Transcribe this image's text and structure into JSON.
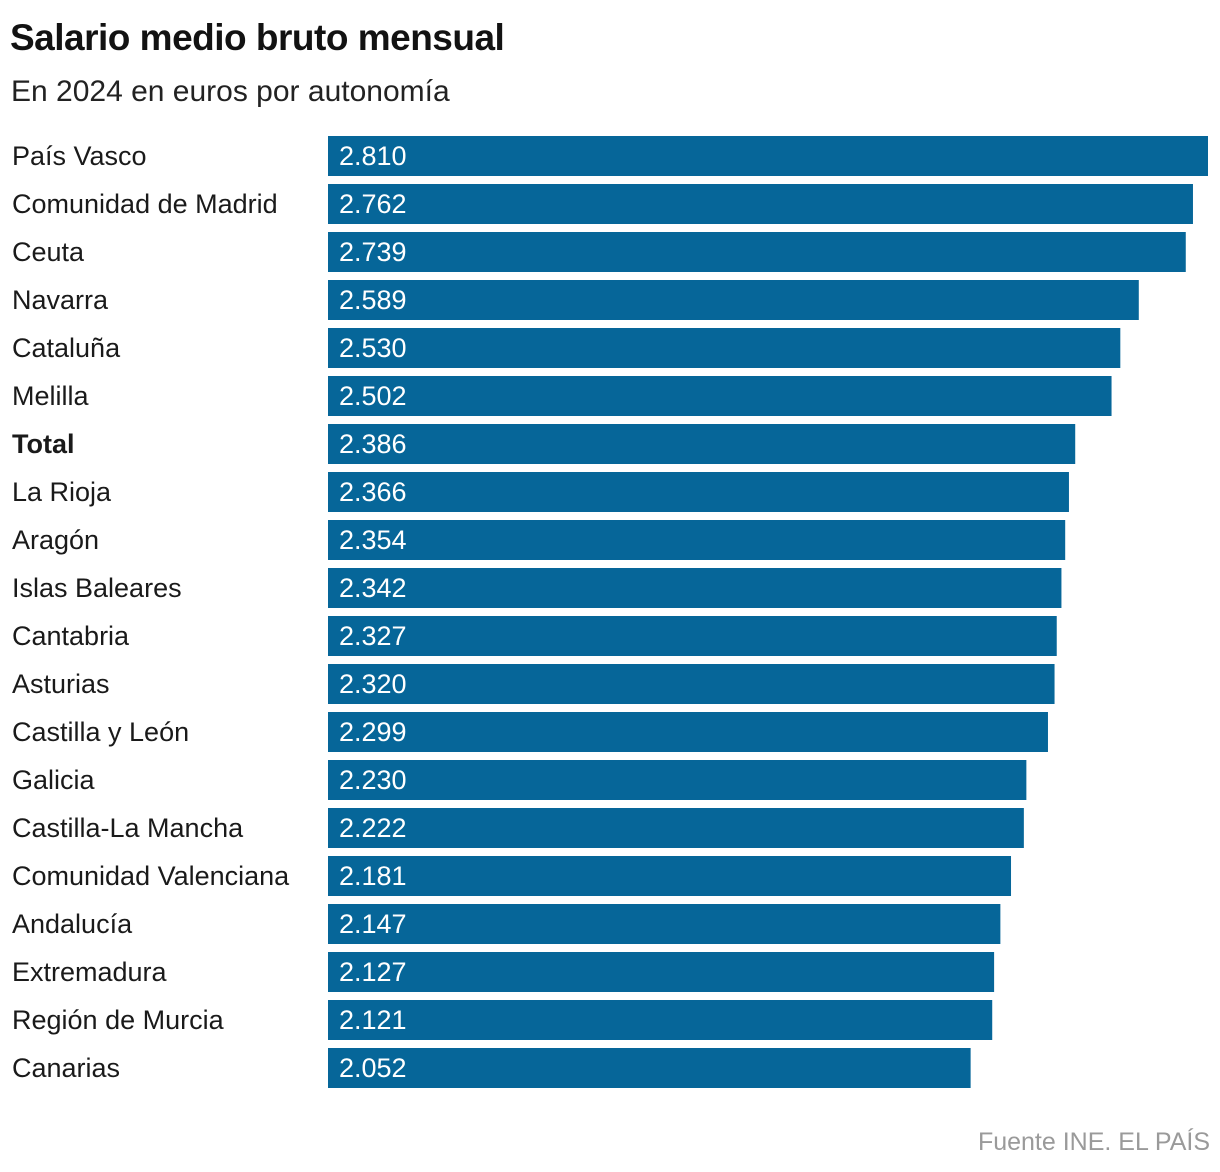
{
  "title": "Salario medio bruto mensual",
  "subtitle": "En 2024 en euros por autonomía",
  "source": "Fuente INE. EL PAÍS",
  "bar_color": "#066699",
  "chart_data": {
    "type": "bar",
    "orientation": "horizontal",
    "title": "Salario medio bruto mensual",
    "subtitle": "En 2024 en euros por autonomía",
    "xlim": [
      0,
      2810
    ],
    "categories": [
      "País Vasco",
      "Comunidad de Madrid",
      "Ceuta",
      "Navarra",
      "Cataluña",
      "Melilla",
      "Total",
      "La Rioja",
      "Aragón",
      "Islas Baleares",
      "Cantabria",
      "Asturias",
      "Castilla y León",
      "Galicia",
      "Castilla-La Mancha",
      "Comunidad Valenciana",
      "Andalucía",
      "Extremadura",
      "Región de Murcia",
      "Canarias"
    ],
    "values": [
      2810,
      2762,
      2739,
      2589,
      2530,
      2502,
      2386,
      2366,
      2354,
      2342,
      2327,
      2320,
      2299,
      2230,
      2222,
      2181,
      2147,
      2127,
      2121,
      2052
    ],
    "value_labels": [
      "2.810",
      "2.762",
      "2.739",
      "2.589",
      "2.530",
      "2.502",
      "2.386",
      "2.366",
      "2.354",
      "2.342",
      "2.327",
      "2.320",
      "2.299",
      "2.230",
      "2.222",
      "2.181",
      "2.147",
      "2.127",
      "2.121",
      "2.052"
    ],
    "highlighted_category": "Total"
  }
}
